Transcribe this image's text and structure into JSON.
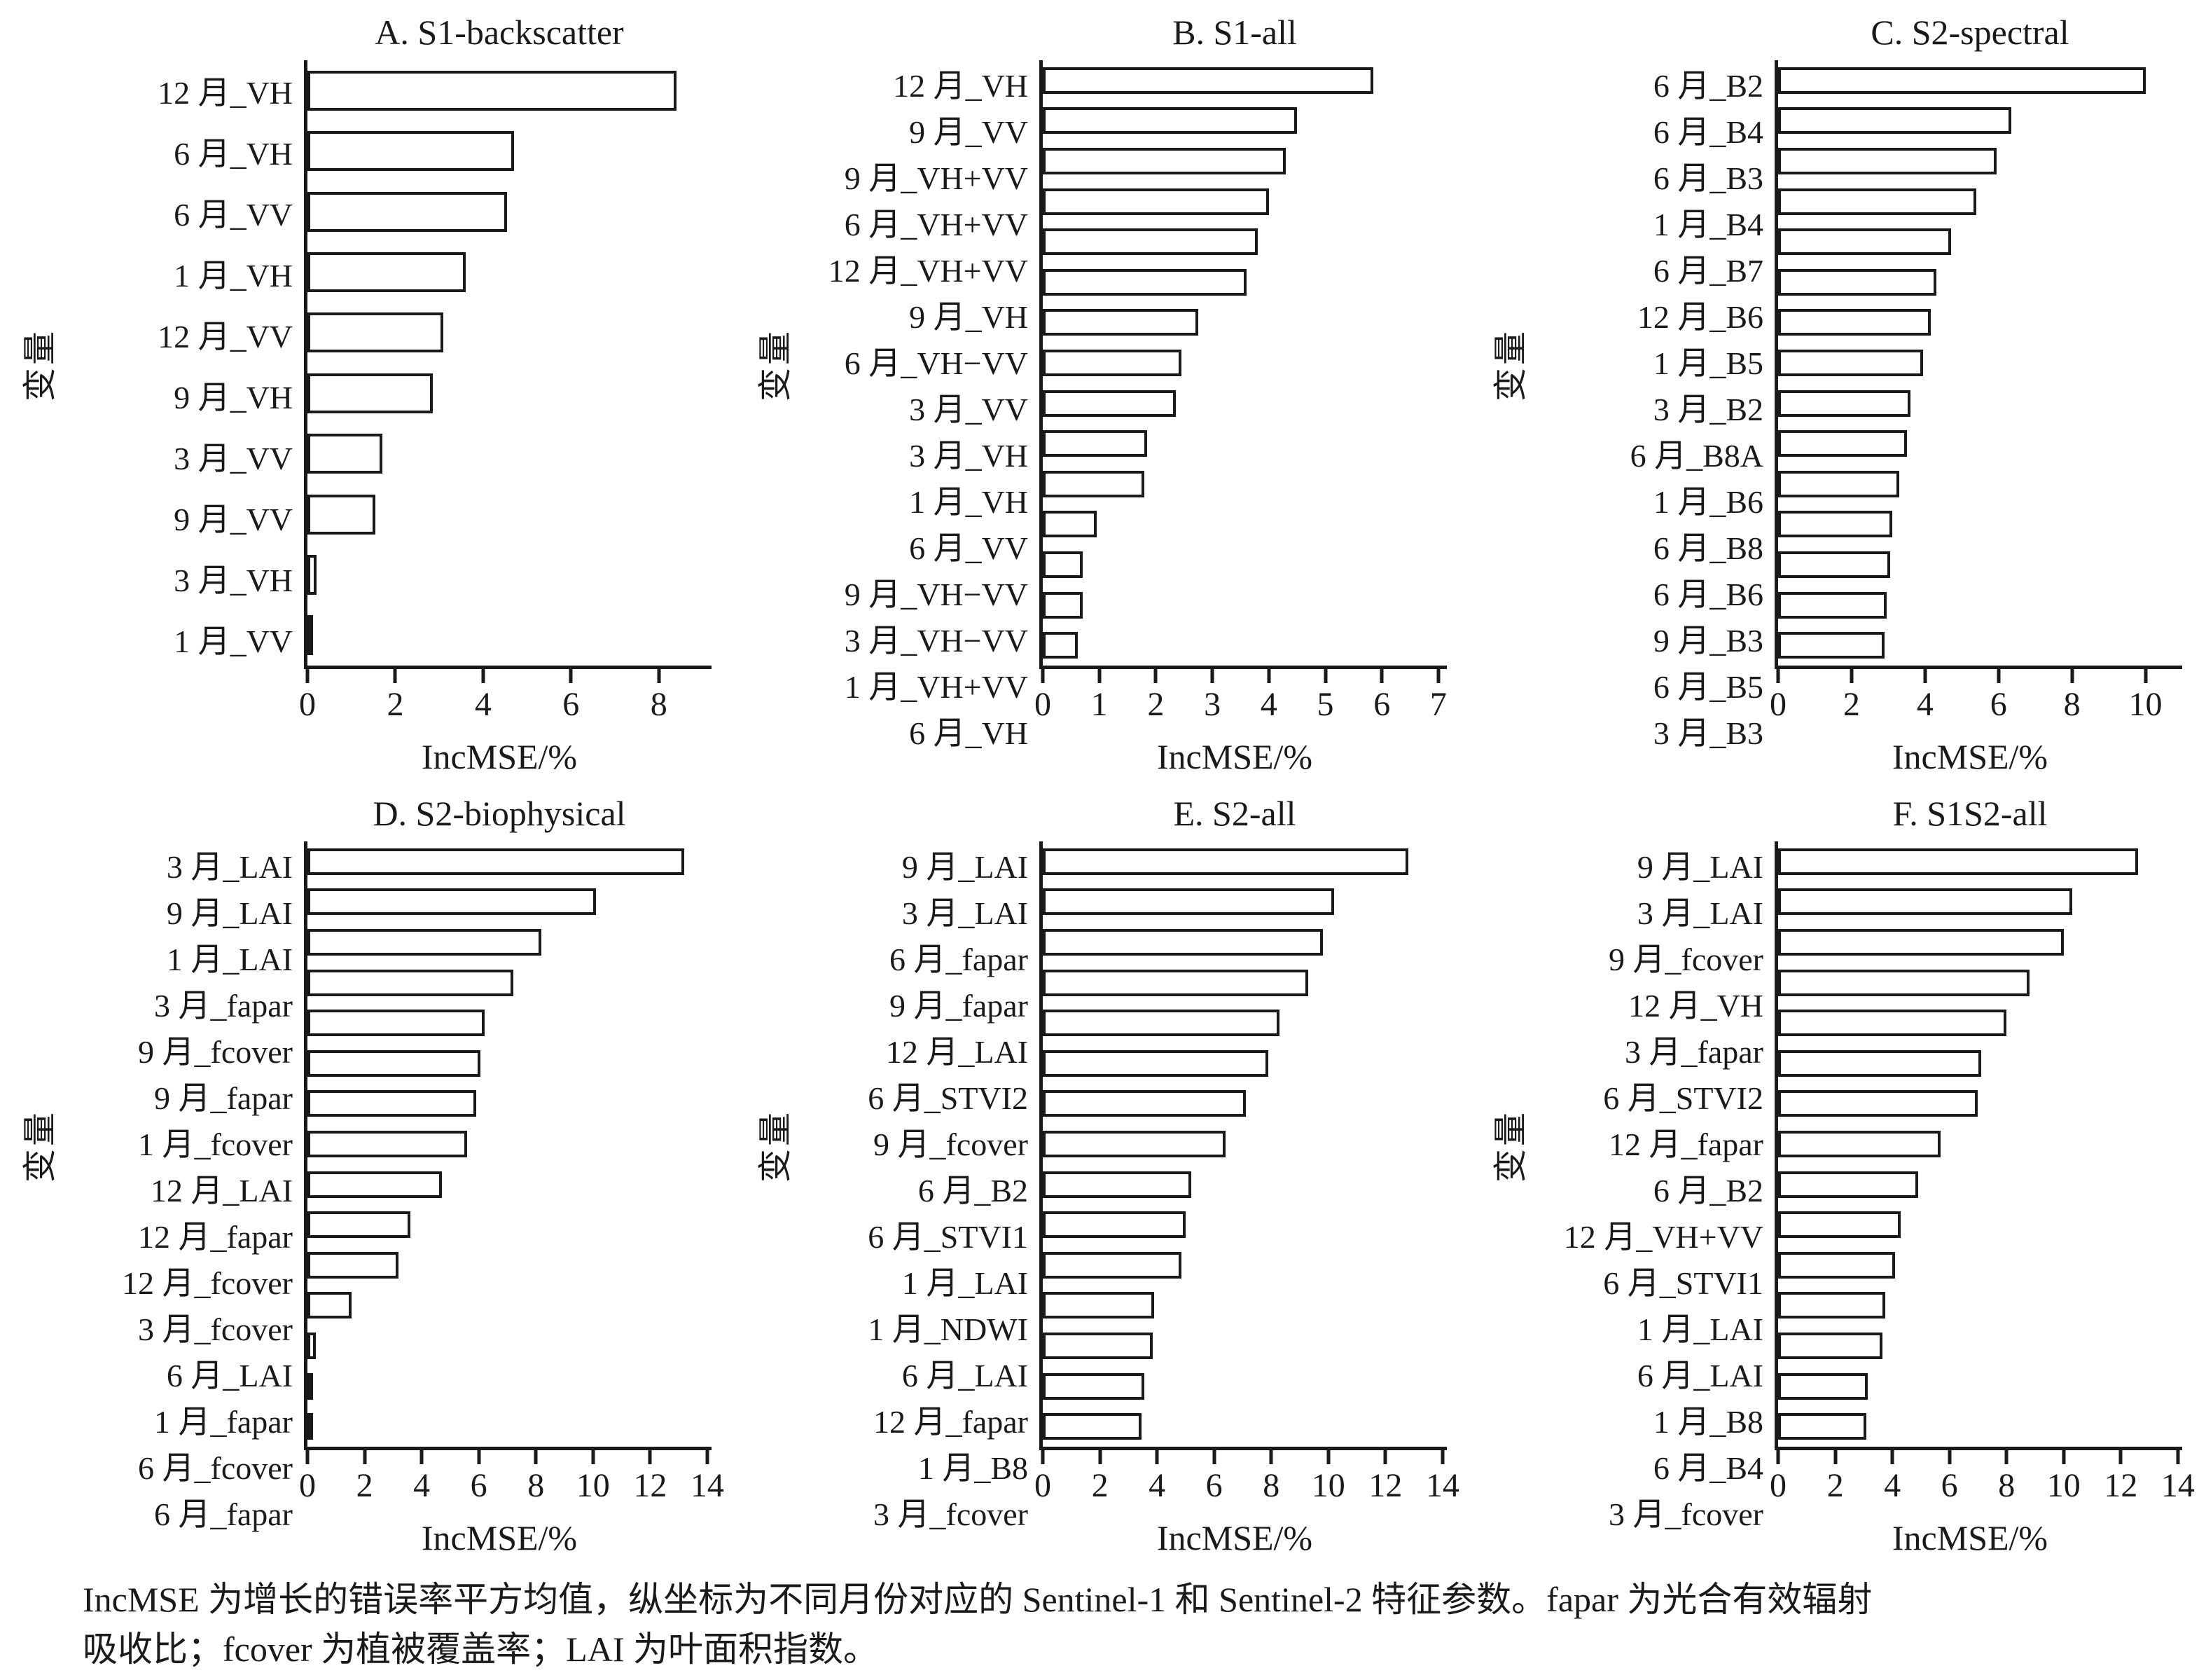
{
  "figure": {
    "colors": {
      "bar_fill": "#ffffff",
      "bar_stroke": "#1a1a1a",
      "axis": "#1a1a1a",
      "text": "#1a1a1a",
      "background": "#ffffff"
    },
    "caption": {
      "line1": "IncMSE 为增长的错误率平方均值，纵坐标为不同月份对应的 Sentinel-1 和 Sentinel-2 特征参数。fapar 为光合有效辐射",
      "line2": "吸收比；fcover 为植被覆盖率；LAI 为叶面积指数。"
    }
  },
  "chart_data": [
    {
      "id": "A",
      "type": "bar",
      "orientation": "horizontal",
      "title": "A. S1-backscatter",
      "xlabel": "IncMSE/%",
      "ylabel": "变量",
      "xlim": [
        0,
        9.2
      ],
      "xticks": [
        0,
        2,
        4,
        6,
        8
      ],
      "grid": false,
      "categories": [
        "12 月_VH",
        "6 月_VH",
        "6 月_VV",
        "1 月_VH",
        "12 月_VV",
        "9 月_VH",
        "3 月_VV",
        "9 月_VV",
        "3 月_VH",
        "1 月_VV"
      ],
      "values": [
        8.4,
        4.7,
        4.55,
        3.6,
        3.1,
        2.85,
        1.7,
        1.55,
        0.2,
        0.05
      ]
    },
    {
      "id": "B",
      "type": "bar",
      "orientation": "horizontal",
      "title": "B. S1-all",
      "xlabel": "IncMSE/%",
      "ylabel": "变量",
      "xlim": [
        0,
        7.15
      ],
      "xticks": [
        0,
        1,
        2,
        3,
        4,
        5,
        6,
        7
      ],
      "grid": false,
      "categories": [
        "12 月_VH",
        "9 月_VV",
        "9 月_VH+VV",
        "6 月_VH+VV",
        "12 月_VH+VV",
        "9 月_VH",
        "6 月_VH−VV",
        "3 月_VV",
        "3 月_VH",
        "1 月_VH",
        "6 月_VV",
        "9 月_VH−VV",
        "3 月_VH−VV",
        "1 月_VH+VV",
        "6 月_VH"
      ],
      "values": [
        5.85,
        4.5,
        4.3,
        4.0,
        3.8,
        3.6,
        2.75,
        2.45,
        2.35,
        1.85,
        1.8,
        0.95,
        0.7,
        0.7,
        0.62
      ]
    },
    {
      "id": "C",
      "type": "bar",
      "orientation": "horizontal",
      "title": "C. S2-spectral",
      "xlabel": "IncMSE/%",
      "ylabel": "变量",
      "xlim": [
        0,
        11.0
      ],
      "xticks": [
        0,
        2,
        4,
        6,
        8,
        10
      ],
      "grid": false,
      "categories": [
        "6 月_B2",
        "6 月_B4",
        "6 月_B3",
        "1 月_B4",
        "6 月_B7",
        "12 月_B6",
        "1 月_B5",
        "3 月_B2",
        "6 月_B8A",
        "1 月_B6",
        "6 月_B8",
        "6 月_B6",
        "9 月_B3",
        "6 月_B5",
        "3 月_B3"
      ],
      "values": [
        10.0,
        6.35,
        5.95,
        5.4,
        4.7,
        4.3,
        4.15,
        3.95,
        3.6,
        3.5,
        3.3,
        3.1,
        3.05,
        2.95,
        2.9
      ]
    },
    {
      "id": "D",
      "type": "bar",
      "orientation": "horizontal",
      "title": "D. S2-biophysical",
      "xlabel": "IncMSE/%",
      "ylabel": "变量",
      "xlim": [
        0,
        14.15
      ],
      "xticks": [
        0,
        2,
        4,
        6,
        8,
        10,
        12,
        14
      ],
      "grid": false,
      "categories": [
        "3 月_LAI",
        "9 月_LAI",
        "1 月_LAI",
        "3 月_fapar",
        "9 月_fcover",
        "9 月_fapar",
        "1 月_fcover",
        "12 月_LAI",
        "12 月_fapar",
        "12 月_fcover",
        "3 月_fcover",
        "6 月_LAI",
        "1 月_fapar",
        "6 月_fcover",
        "6 月_fapar"
      ],
      "values": [
        13.2,
        10.1,
        8.2,
        7.2,
        6.2,
        6.05,
        5.9,
        5.6,
        4.7,
        3.6,
        3.2,
        1.55,
        0.3,
        0.12,
        0.05
      ]
    },
    {
      "id": "E",
      "type": "bar",
      "orientation": "horizontal",
      "title": "E. S2-all",
      "xlabel": "IncMSE/%",
      "ylabel": "变量",
      "xlim": [
        0,
        14.15
      ],
      "xticks": [
        0,
        2,
        4,
        6,
        8,
        10,
        12,
        14
      ],
      "grid": false,
      "categories": [
        "9 月_LAI",
        "3 月_LAI",
        "6 月_fapar",
        "9 月_fapar",
        "12 月_LAI",
        "6 月_STVI2",
        "9 月_fcover",
        "6 月_B2",
        "6 月_STVI1",
        "1 月_LAI",
        "1 月_NDWI",
        "6 月_LAI",
        "12 月_fapar",
        "1 月_B8",
        "3 月_fcover"
      ],
      "values": [
        12.8,
        10.2,
        9.8,
        9.3,
        8.3,
        7.9,
        7.1,
        6.4,
        5.2,
        5.0,
        4.85,
        3.9,
        3.85,
        3.55,
        3.45
      ]
    },
    {
      "id": "F",
      "type": "bar",
      "orientation": "horizontal",
      "title": "F. S1S2-all",
      "xlabel": "IncMSE/%",
      "ylabel": "变量",
      "xlim": [
        0,
        14.15
      ],
      "xticks": [
        0,
        2,
        4,
        6,
        8,
        10,
        12,
        14
      ],
      "grid": false,
      "categories": [
        "9 月_LAI",
        "3 月_LAI",
        "9 月_fcover",
        "12 月_VH",
        "3 月_fapar",
        "6 月_STVI2",
        "12 月_fapar",
        "6 月_B2",
        "12 月_VH+VV",
        "6 月_STVI1",
        "1 月_LAI",
        "6 月_LAI",
        "1 月_B8",
        "6 月_B4",
        "3 月_fcover"
      ],
      "values": [
        12.6,
        10.3,
        10.0,
        8.8,
        8.0,
        7.1,
        7.0,
        5.7,
        4.9,
        4.3,
        4.1,
        3.75,
        3.65,
        3.15,
        3.1
      ]
    }
  ]
}
